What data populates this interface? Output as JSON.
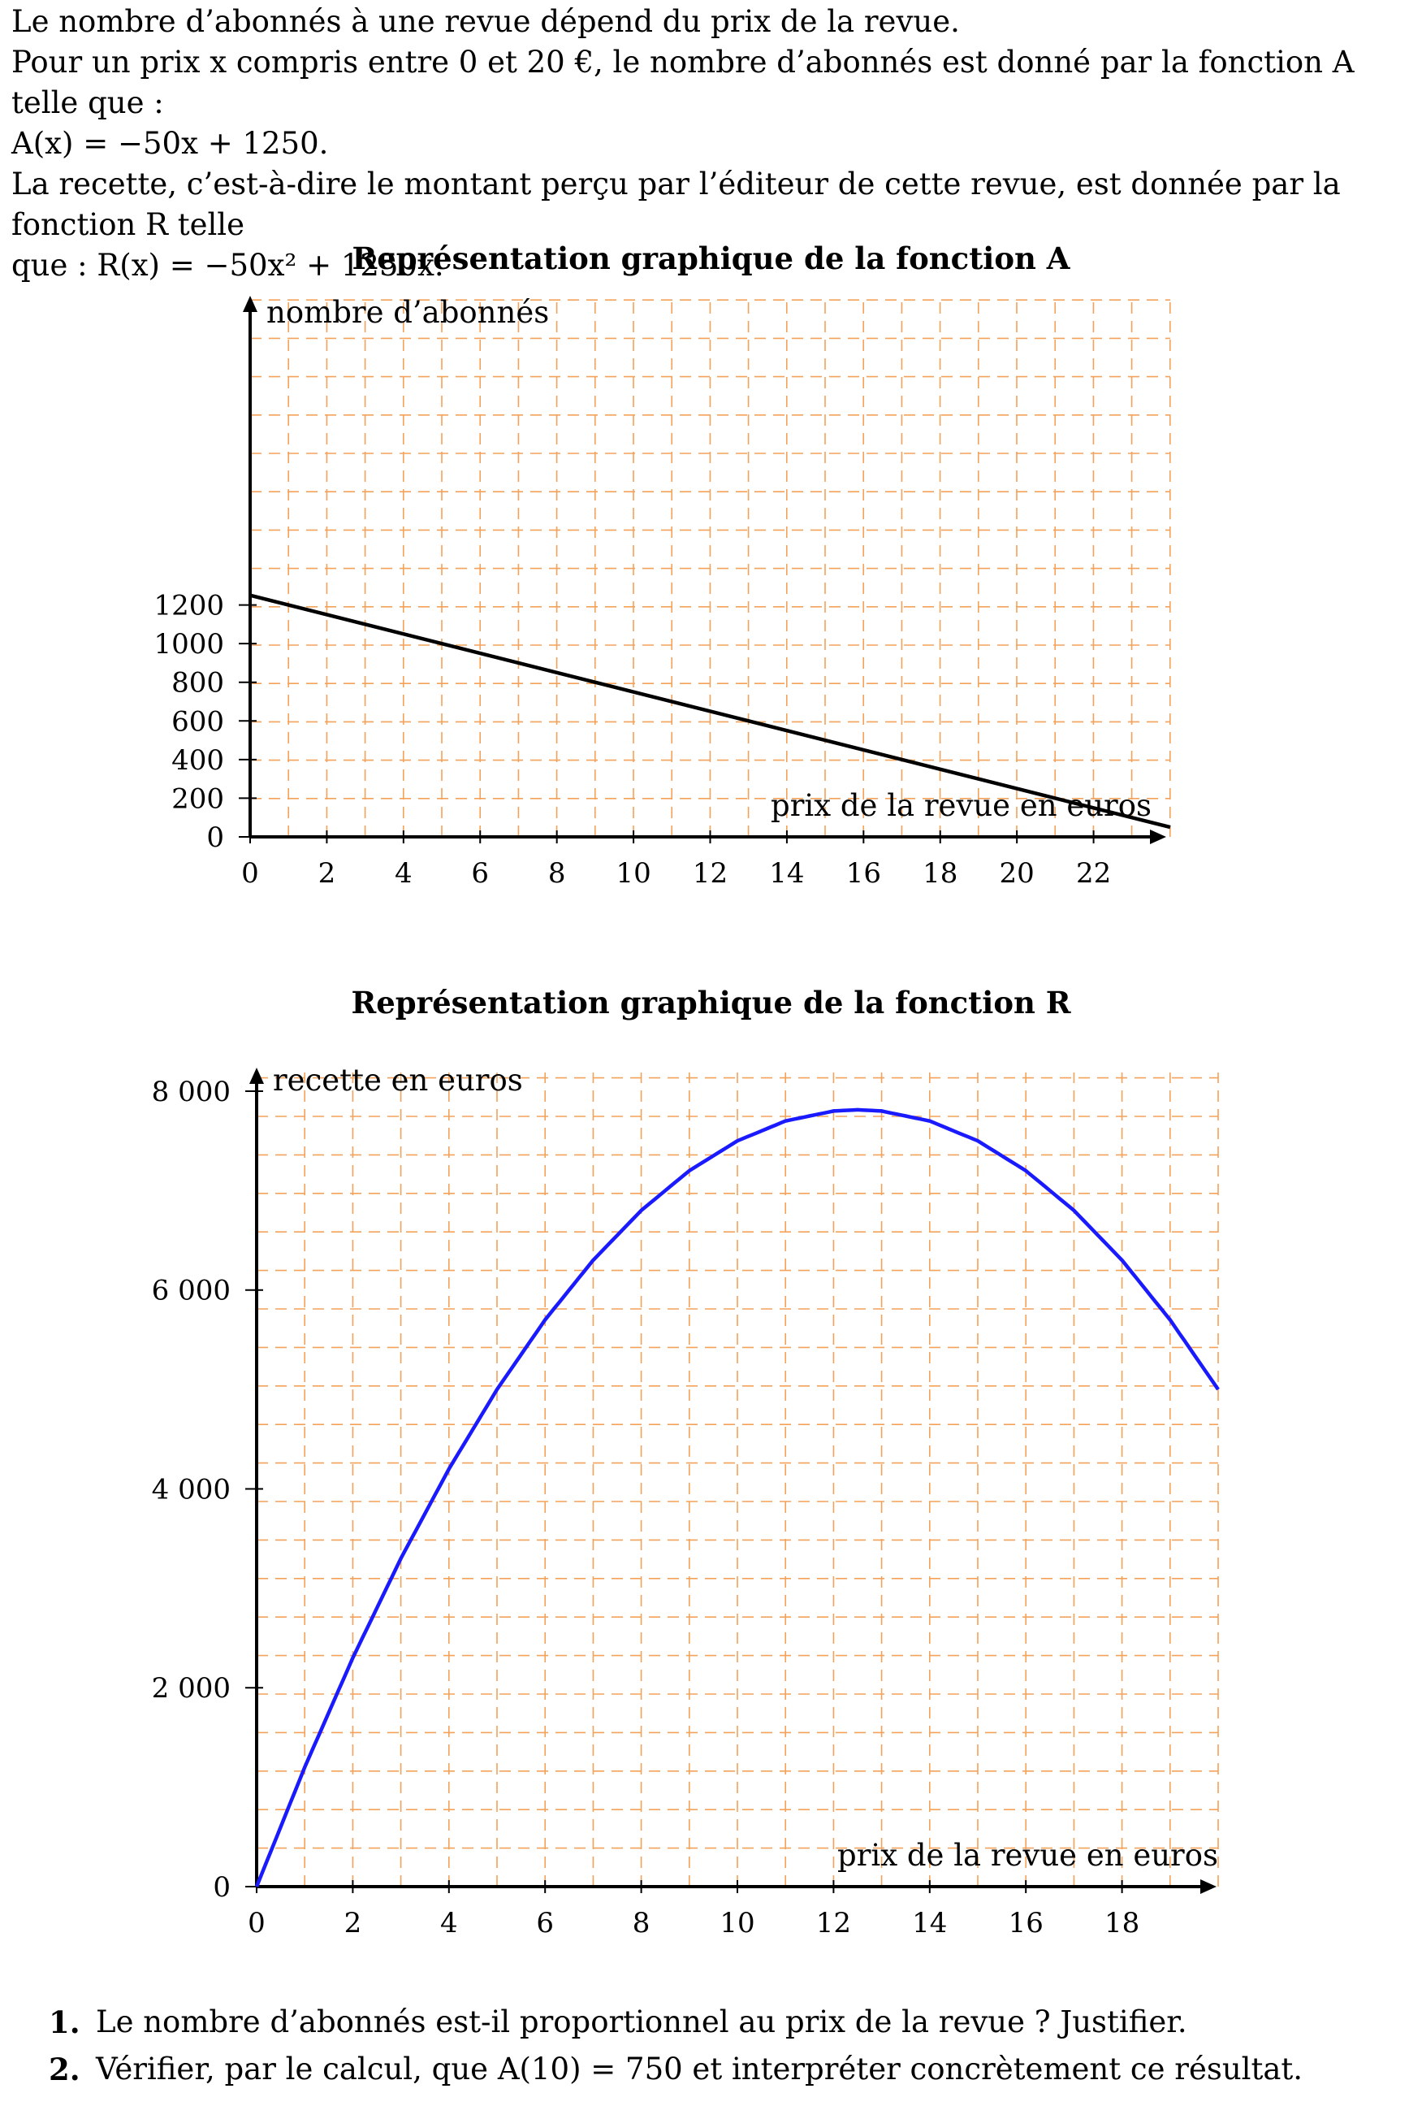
{
  "intro": {
    "line1": "Le nombre d’abonnés à une revue dépend du prix de la revue.",
    "line2": "Pour un prix x compris entre 0 et 20 €, le nombre d’abonnés est donné par la fonction A telle que :",
    "line3": "A(x) = −50x + 1250.",
    "line4": "La recette, c’est-à-dire le montant perçu par l’éditeur de cette revue, est donnée par la fonction R telle",
    "line5": "que : R(x) = −50x² + 1250x."
  },
  "chart_data": [
    {
      "type": "line",
      "title": "Représentation graphique de la fonction A",
      "xlabel": "prix de la revue en euros",
      "ylabel": "nombre d’abonnés",
      "xlim": [
        0,
        24
      ],
      "ylim": [
        0,
        1400
      ],
      "xticks": [
        "0",
        "2",
        "4",
        "6",
        "8",
        "10",
        "12",
        "14",
        "16",
        "18",
        "20",
        "22"
      ],
      "yticks": [
        "0",
        "200",
        "400",
        "600",
        "800",
        "1000",
        "1200"
      ],
      "grid": true,
      "color": "#000000",
      "grid_color": "#f4a25a",
      "series": [
        {
          "x": [
            0,
            24
          ],
          "y": [
            1250,
            50
          ]
        }
      ]
    },
    {
      "type": "line",
      "title": "Représentation graphique de la fonction R",
      "xlabel": "prix de la revue en euros",
      "ylabel": "recette en euros",
      "xlim": [
        0,
        20
      ],
      "ylim": [
        0,
        8400
      ],
      "xticks": [
        "0",
        "2",
        "4",
        "6",
        "8",
        "10",
        "12",
        "14",
        "16",
        "18"
      ],
      "yticks": [
        "0",
        "2 000",
        "4 000",
        "6 000",
        "8 000"
      ],
      "grid": true,
      "color": "#1a1aff",
      "grid_color": "#f4a25a",
      "series": [
        {
          "x": [
            0,
            1,
            2,
            3,
            4,
            5,
            6,
            7,
            8,
            9,
            10,
            11,
            12,
            12.5,
            13,
            14,
            15,
            16,
            17,
            18,
            19,
            20
          ],
          "y": [
            0,
            1200,
            2300,
            3300,
            4200,
            5000,
            5700,
            6300,
            6800,
            7200,
            7500,
            7700,
            7800,
            7812.5,
            7800,
            7700,
            7500,
            7200,
            6800,
            6300,
            5700,
            5000
          ]
        }
      ]
    }
  ],
  "questions": [
    {
      "num": "1.",
      "text": "Le nombre d’abonnés est-il proportionnel au prix de la revue ? Justifier."
    },
    {
      "num": "2.",
      "text": "Vérifier, par le calcul, que A(10) = 750 et interpréter concrètement ce résultat."
    }
  ]
}
